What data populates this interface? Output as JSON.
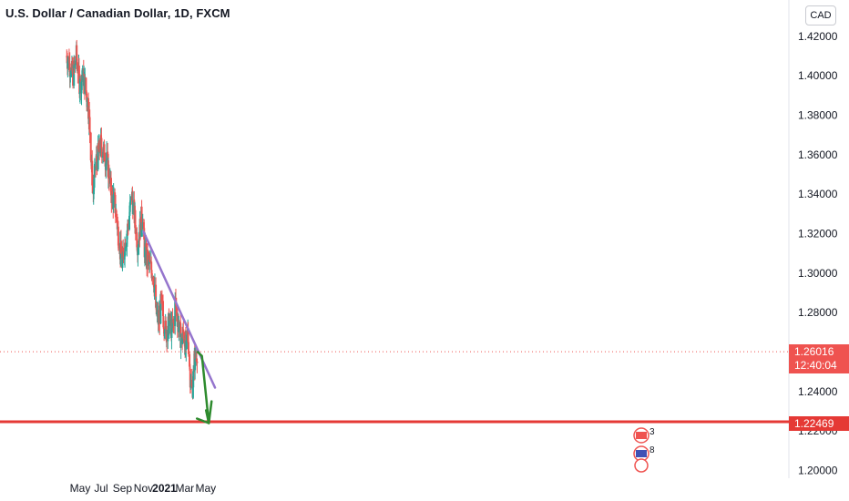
{
  "header": {
    "title": "U.S. Dollar / Canadian Dollar, 1D, FXCM",
    "currency": "CAD"
  },
  "colors": {
    "up": "#26a69a",
    "down": "#ef5350",
    "trendline": "#9575cd",
    "projection": "#2e8b2e",
    "support": "#e53935",
    "price_line": "#ef5350"
  },
  "chart_data": {
    "type": "candlestick",
    "symbol": "USDCAD",
    "interval": "1D",
    "source": "FXCM",
    "ylim": [
      1.195,
      1.43
    ],
    "y_ticks": [
      "1.42000",
      "1.40000",
      "1.38000",
      "1.36000",
      "1.34000",
      "1.32000",
      "1.30000",
      "1.28000",
      "1.24000",
      "1.22000",
      "1.20000"
    ],
    "x_ticks": [
      "May",
      "Jul",
      "Sep",
      "Nov",
      "2021",
      "Mar",
      "May"
    ],
    "bold_x_ticks": [
      "2021"
    ],
    "x_range": [
      "2020-03-23",
      "2021-06-01"
    ],
    "close_path": [
      [
        "2020-03-23",
        1.41
      ],
      [
        "2020-04-01",
        1.405
      ],
      [
        "2020-04-10",
        1.4
      ],
      [
        "2020-04-20",
        1.41
      ],
      [
        "2020-04-30",
        1.395
      ],
      [
        "2020-05-10",
        1.4
      ],
      [
        "2020-05-20",
        1.39
      ],
      [
        "2020-05-27",
        1.38
      ],
      [
        "2020-06-03",
        1.355
      ],
      [
        "2020-06-08",
        1.34
      ],
      [
        "2020-06-15",
        1.355
      ],
      [
        "2020-06-22",
        1.36
      ],
      [
        "2020-06-30",
        1.365
      ],
      [
        "2020-07-10",
        1.36
      ],
      [
        "2020-07-20",
        1.355
      ],
      [
        "2020-07-31",
        1.34
      ],
      [
        "2020-08-10",
        1.335
      ],
      [
        "2020-08-20",
        1.32
      ],
      [
        "2020-08-31",
        1.305
      ],
      [
        "2020-09-08",
        1.315
      ],
      [
        "2020-09-18",
        1.325
      ],
      [
        "2020-09-28",
        1.34
      ],
      [
        "2020-10-05",
        1.33
      ],
      [
        "2020-10-15",
        1.315
      ],
      [
        "2020-10-28",
        1.33
      ],
      [
        "2020-11-05",
        1.31
      ],
      [
        "2020-11-15",
        1.305
      ],
      [
        "2020-11-30",
        1.3
      ],
      [
        "2020-12-08",
        1.28
      ],
      [
        "2020-12-15",
        1.275
      ],
      [
        "2020-12-22",
        1.285
      ],
      [
        "2021-01-05",
        1.27
      ],
      [
        "2021-01-15",
        1.275
      ],
      [
        "2021-01-25",
        1.27
      ],
      [
        "2021-02-02",
        1.285
      ],
      [
        "2021-02-10",
        1.275
      ],
      [
        "2021-02-20",
        1.265
      ],
      [
        "2021-02-26",
        1.27
      ],
      [
        "2021-03-05",
        1.26
      ],
      [
        "2021-03-10",
        1.27
      ],
      [
        "2021-03-18",
        1.245
      ],
      [
        "2021-03-23",
        1.24
      ],
      [
        "2021-03-29",
        1.255
      ],
      [
        "2021-04-06",
        1.2602
      ]
    ],
    "last_price": "1.26016",
    "countdown": "12:40:04",
    "support_price": "1.22469",
    "support_level": 1.22469,
    "trendline": [
      [
        "2020-11-01",
        1.321
      ],
      [
        "2021-05-28",
        1.242
      ]
    ],
    "projection": [
      [
        "2021-04-08",
        1.26
      ],
      [
        "2021-04-20",
        1.258
      ],
      [
        "2021-05-10",
        1.224
      ],
      [
        "2021-05-18",
        1.235
      ]
    ],
    "events": [
      "3",
      "8"
    ]
  }
}
